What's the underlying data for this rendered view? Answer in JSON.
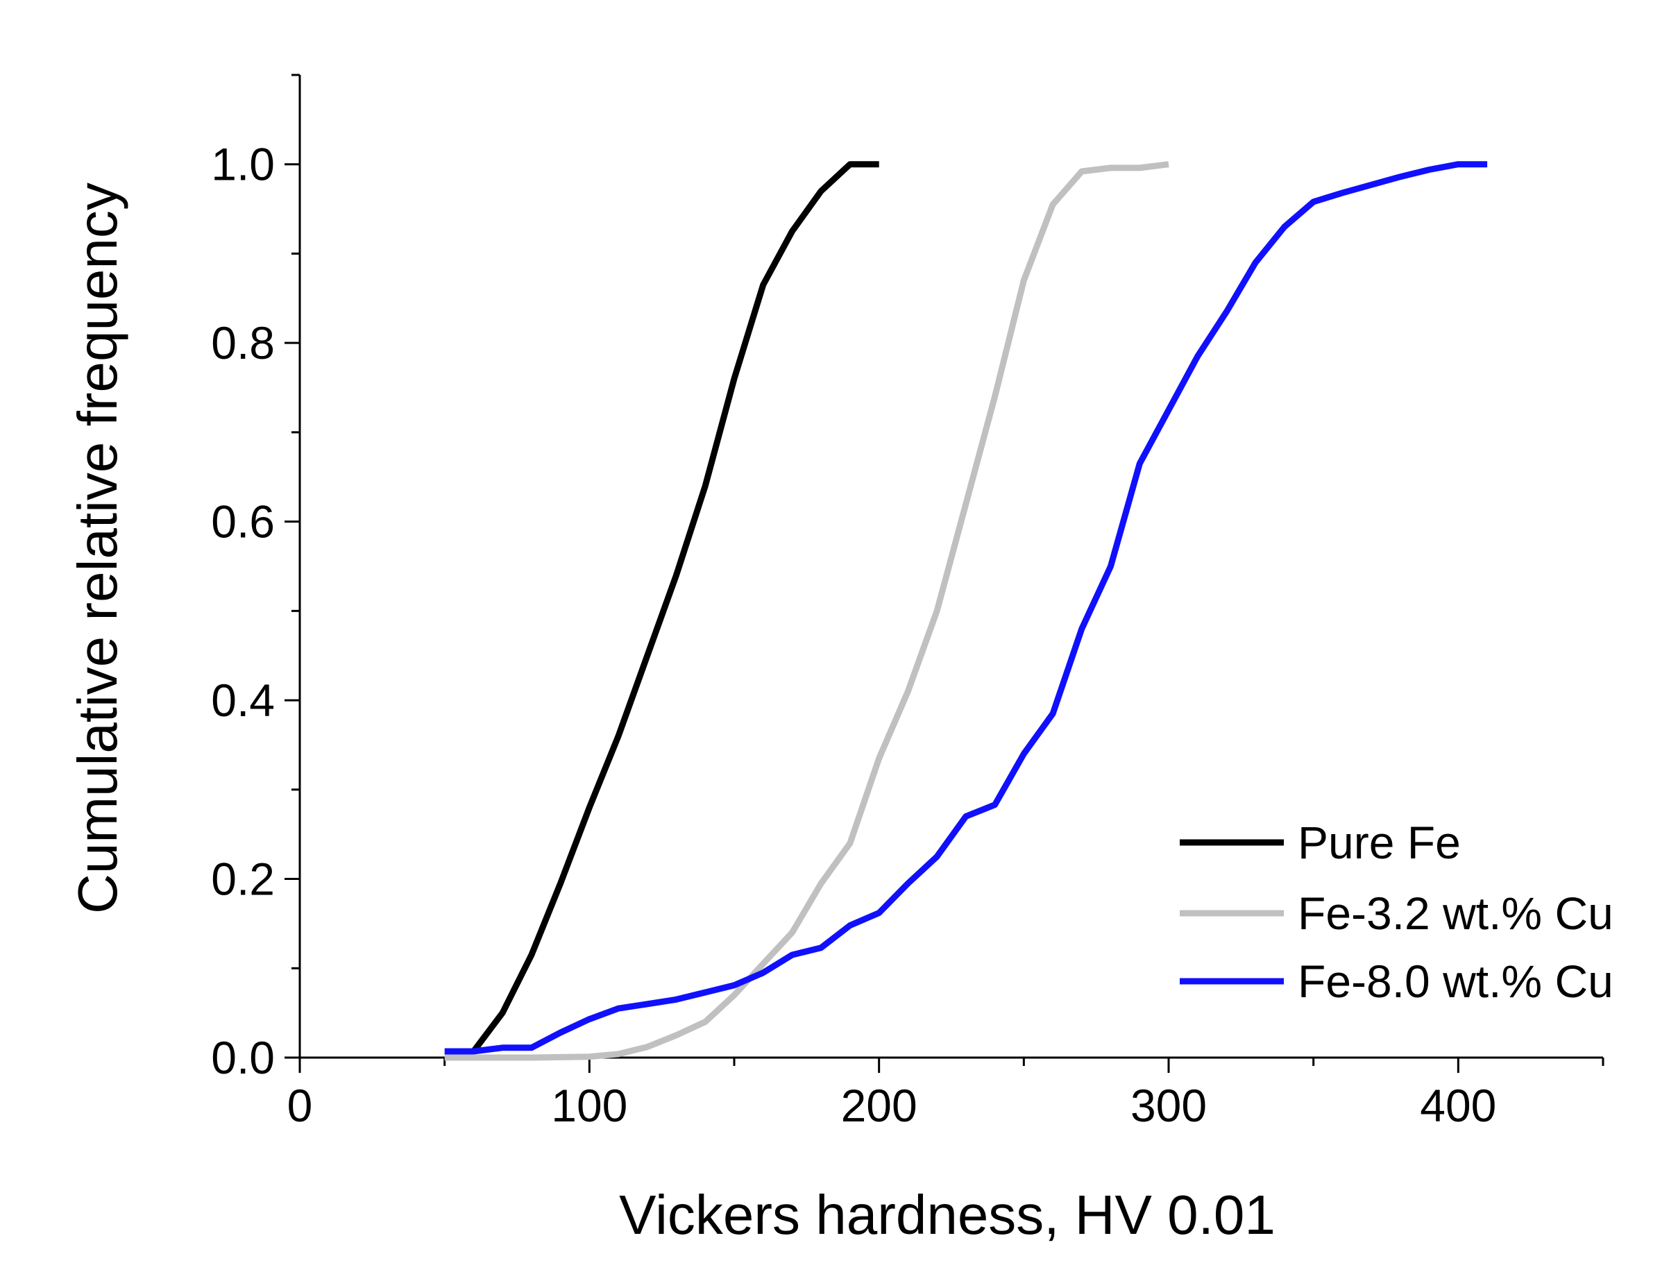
{
  "chart_data": {
    "type": "line",
    "title": "",
    "xlabel": "Vickers hardness, HV 0.01",
    "ylabel": "Cumulative relative frequency",
    "xlim": [
      0,
      450
    ],
    "ylim": [
      0,
      1.1
    ],
    "x_ticks": [
      0,
      100,
      200,
      300,
      400
    ],
    "x_tick_labels": [
      "0",
      "100",
      "200",
      "300",
      "400"
    ],
    "x_minor_ticks": [
      50,
      150,
      250,
      350,
      450
    ],
    "y_ticks": [
      0,
      0.2,
      0.4,
      0.6,
      0.8,
      1.0
    ],
    "y_tick_labels": [
      "0.0",
      "0.2",
      "0.4",
      "0.6",
      "0.8",
      "1.0"
    ],
    "y_minor_ticks": [
      0.1,
      0.3,
      0.5,
      0.7,
      0.9
    ],
    "grid": false,
    "legend_position": "lower-right",
    "series": [
      {
        "name": "Pure Fe",
        "color": "#000000",
        "x": [
          60,
          70,
          80,
          90,
          100,
          110,
          120,
          130,
          140,
          150,
          160,
          170,
          180,
          190,
          200
        ],
        "y": [
          0.007,
          0.05,
          0.115,
          0.195,
          0.28,
          0.36,
          0.45,
          0.54,
          0.64,
          0.76,
          0.865,
          0.925,
          0.97,
          1.0,
          1.0
        ]
      },
      {
        "name": "Fe-3.2 wt.% Cu",
        "color": "#c0c0c0",
        "x": [
          50,
          80,
          100,
          110,
          120,
          130,
          140,
          150,
          160,
          170,
          180,
          190,
          200,
          210,
          220,
          230,
          240,
          250,
          260,
          270,
          280,
          290,
          300
        ],
        "y": [
          0.0,
          0.0,
          0.001,
          0.004,
          0.012,
          0.025,
          0.04,
          0.07,
          0.105,
          0.14,
          0.195,
          0.24,
          0.335,
          0.41,
          0.5,
          0.62,
          0.74,
          0.87,
          0.955,
          0.992,
          0.996,
          0.996,
          1.0
        ]
      },
      {
        "name": "Fe-8.0 wt.% Cu",
        "color": "#1010ff",
        "x": [
          50,
          60,
          70,
          80,
          90,
          100,
          110,
          120,
          130,
          140,
          150,
          160,
          170,
          180,
          190,
          200,
          210,
          220,
          230,
          240,
          250,
          260,
          270,
          280,
          290,
          300,
          310,
          320,
          330,
          340,
          350,
          360,
          370,
          380,
          390,
          400,
          410
        ],
        "y": [
          0.007,
          0.007,
          0.011,
          0.011,
          0.028,
          0.043,
          0.055,
          0.06,
          0.065,
          0.073,
          0.081,
          0.095,
          0.115,
          0.123,
          0.148,
          0.162,
          0.195,
          0.225,
          0.27,
          0.283,
          0.34,
          0.385,
          0.48,
          0.55,
          0.665,
          0.725,
          0.785,
          0.835,
          0.89,
          0.93,
          0.958,
          0.968,
          0.977,
          0.986,
          0.994,
          1.0,
          1.0
        ]
      }
    ]
  }
}
